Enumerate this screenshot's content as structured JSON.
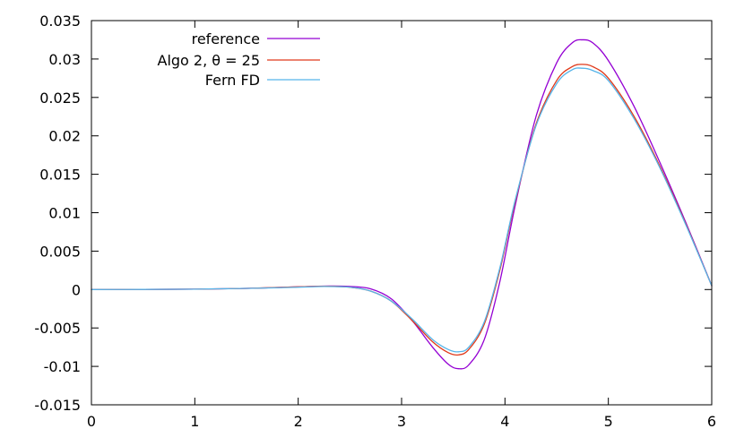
{
  "chart_data": {
    "type": "line",
    "title": "",
    "xlabel": "",
    "ylabel": "",
    "xlim": [
      0,
      6
    ],
    "ylim": [
      -0.015,
      0.035
    ],
    "x_ticks": [
      {
        "value": 0,
        "label": "0"
      },
      {
        "value": 1,
        "label": "1"
      },
      {
        "value": 2,
        "label": "2"
      },
      {
        "value": 3,
        "label": "3"
      },
      {
        "value": 4,
        "label": "4"
      },
      {
        "value": 5,
        "label": "5"
      },
      {
        "value": 6,
        "label": "6"
      }
    ],
    "y_ticks": [
      {
        "value": -0.015,
        "label": "-0.015"
      },
      {
        "value": -0.01,
        "label": "-0.01"
      },
      {
        "value": -0.005,
        "label": "-0.005"
      },
      {
        "value": 0,
        "label": "0"
      },
      {
        "value": 0.005,
        "label": "0.005"
      },
      {
        "value": 0.01,
        "label": "0.01"
      },
      {
        "value": 0.015,
        "label": "0.015"
      },
      {
        "value": 0.02,
        "label": "0.02"
      },
      {
        "value": 0.025,
        "label": "0.025"
      },
      {
        "value": 0.03,
        "label": "0.03"
      },
      {
        "value": 0.035,
        "label": "0.035"
      }
    ],
    "grid": false,
    "legend_position": "top-left",
    "series": [
      {
        "name": "reference",
        "color": "#9400d3",
        "points": [
          [
            0,
            0
          ],
          [
            0.5,
            1e-05
          ],
          [
            1.0,
            5e-05
          ],
          [
            1.5,
            0.00015
          ],
          [
            2.0,
            0.00035
          ],
          [
            2.3,
            0.00045
          ],
          [
            2.5,
            0.0004
          ],
          [
            2.7,
            0.0001
          ],
          [
            2.9,
            -0.0012
          ],
          [
            3.1,
            -0.004
          ],
          [
            3.3,
            -0.0075
          ],
          [
            3.45,
            -0.0097
          ],
          [
            3.55,
            -0.0103
          ],
          [
            3.65,
            -0.0098
          ],
          [
            3.8,
            -0.0065
          ],
          [
            3.95,
            0.001
          ],
          [
            4.1,
            0.011
          ],
          [
            4.3,
            0.0225
          ],
          [
            4.5,
            0.0295
          ],
          [
            4.65,
            0.0321
          ],
          [
            4.75,
            0.0325
          ],
          [
            4.85,
            0.0321
          ],
          [
            5.0,
            0.0298
          ],
          [
            5.25,
            0.0238
          ],
          [
            5.5,
            0.0165
          ],
          [
            5.75,
            0.0087
          ],
          [
            6.0,
            0.0005
          ]
        ]
      },
      {
        "name": "Algo 2, θ = 25",
        "color": "#e0391a",
        "points": [
          [
            0,
            0
          ],
          [
            0.5,
            1e-05
          ],
          [
            1.0,
            5e-05
          ],
          [
            1.5,
            0.00015
          ],
          [
            2.0,
            0.00035
          ],
          [
            2.25,
            0.00042
          ],
          [
            2.5,
            0.0003
          ],
          [
            2.7,
            -0.0002
          ],
          [
            2.9,
            -0.0015
          ],
          [
            3.1,
            -0.004
          ],
          [
            3.3,
            -0.0068
          ],
          [
            3.45,
            -0.0082
          ],
          [
            3.55,
            -0.0085
          ],
          [
            3.65,
            -0.0078
          ],
          [
            3.8,
            -0.0045
          ],
          [
            3.95,
            0.0025
          ],
          [
            4.1,
            0.0115
          ],
          [
            4.3,
            0.0215
          ],
          [
            4.5,
            0.0272
          ],
          [
            4.65,
            0.029
          ],
          [
            4.75,
            0.0293
          ],
          [
            4.85,
            0.029
          ],
          [
            5.0,
            0.0275
          ],
          [
            5.25,
            0.0225
          ],
          [
            5.5,
            0.016
          ],
          [
            5.75,
            0.0085
          ],
          [
            6.0,
            0.0005
          ]
        ]
      },
      {
        "name": "Fern FD",
        "color": "#56b4e9",
        "points": [
          [
            0,
            0
          ],
          [
            0.5,
            1e-05
          ],
          [
            1.0,
            5e-05
          ],
          [
            1.5,
            0.00015
          ],
          [
            2.0,
            0.0003
          ],
          [
            2.25,
            0.0004
          ],
          [
            2.5,
            0.0003
          ],
          [
            2.7,
            -0.0002
          ],
          [
            2.9,
            -0.0015
          ],
          [
            3.1,
            -0.0038
          ],
          [
            3.3,
            -0.0065
          ],
          [
            3.45,
            -0.0078
          ],
          [
            3.55,
            -0.0081
          ],
          [
            3.65,
            -0.0075
          ],
          [
            3.8,
            -0.0042
          ],
          [
            3.95,
            0.0028
          ],
          [
            4.1,
            0.0117
          ],
          [
            4.3,
            0.0213
          ],
          [
            4.5,
            0.0268
          ],
          [
            4.65,
            0.0286
          ],
          [
            4.75,
            0.0288
          ],
          [
            4.85,
            0.0285
          ],
          [
            5.0,
            0.0272
          ],
          [
            5.25,
            0.0222
          ],
          [
            5.5,
            0.0158
          ],
          [
            5.75,
            0.0084
          ],
          [
            6.0,
            0.0005
          ]
        ]
      }
    ]
  }
}
